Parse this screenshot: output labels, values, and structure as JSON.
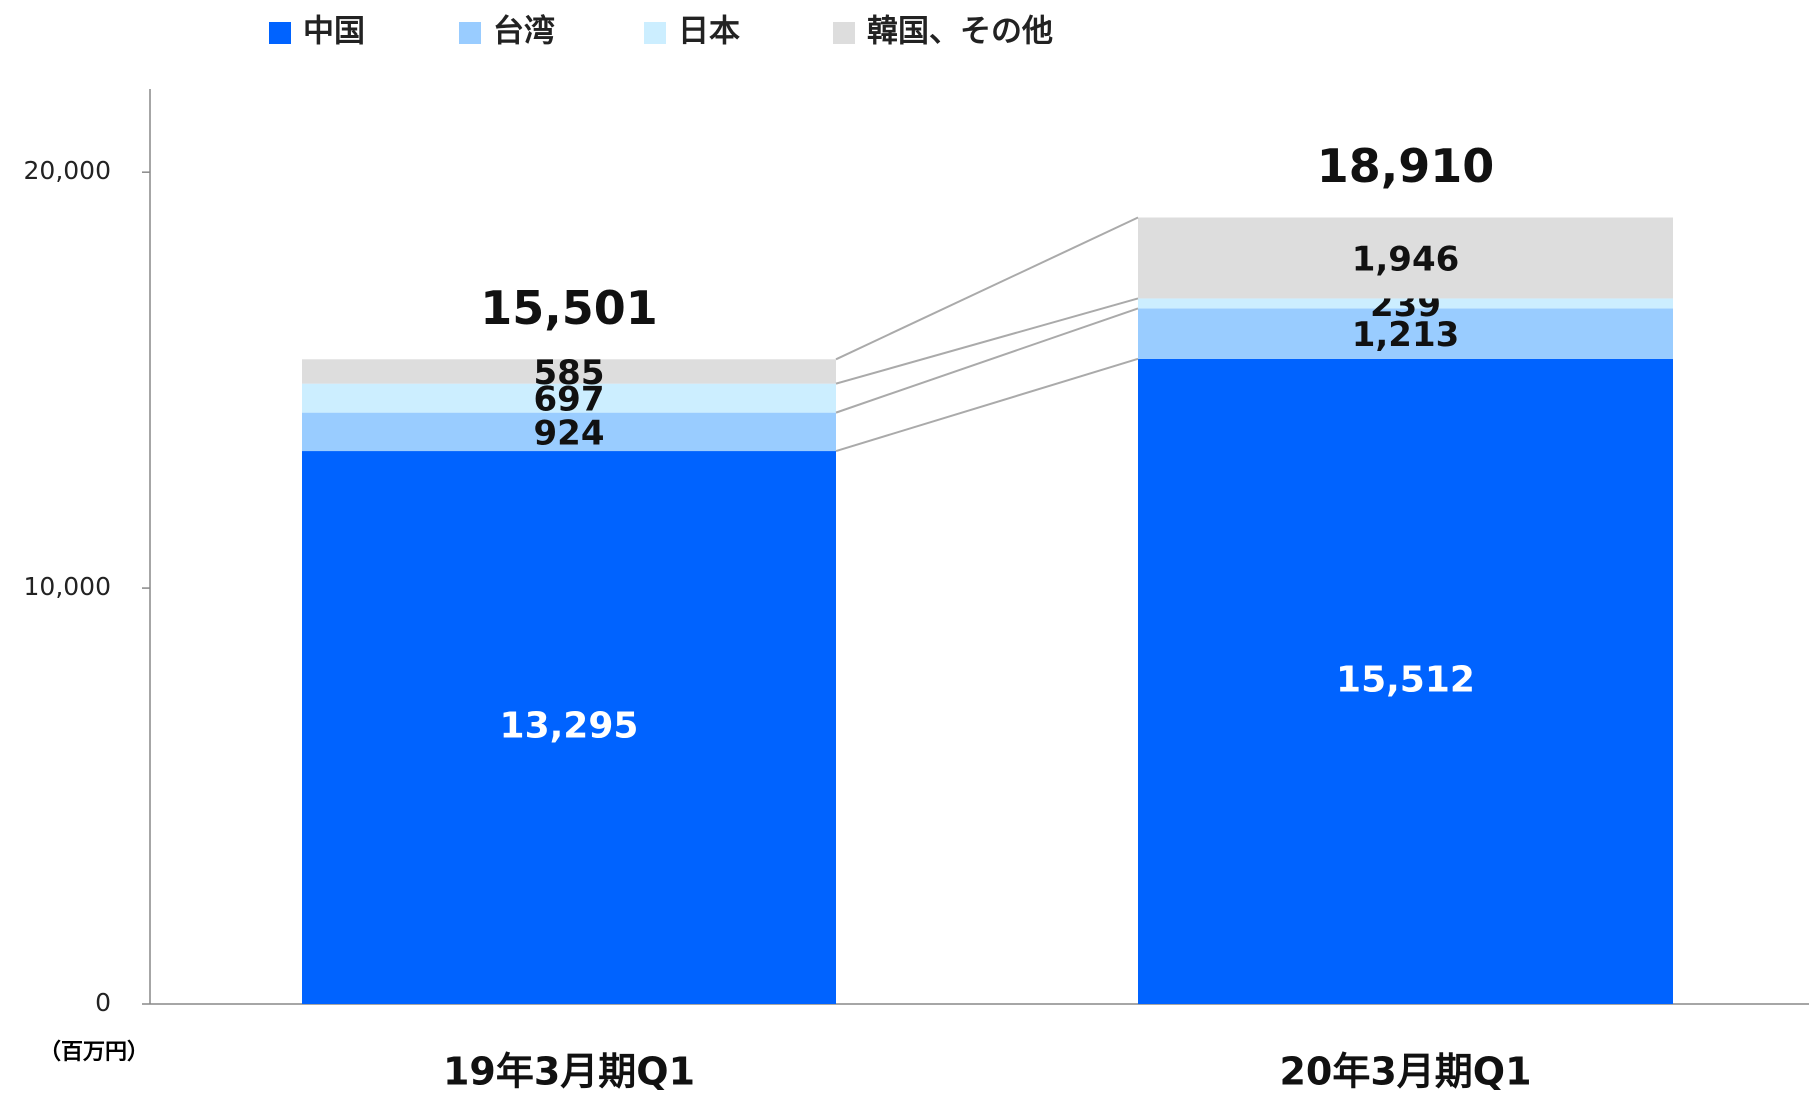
{
  "chart_data": {
    "type": "stacked-bar",
    "categories": [
      "19年3月期Q1",
      "20年3月期Q1"
    ],
    "series": [
      {
        "name": "中国",
        "color": "#0063ff",
        "values": [
          13295,
          15512
        ],
        "value_labels": [
          "13,295",
          "15,512"
        ]
      },
      {
        "name": "台湾",
        "color": "#99ccff",
        "values": [
          924,
          1213
        ],
        "value_labels": [
          "924",
          "1,213"
        ]
      },
      {
        "name": "日本",
        "color": "#cceeff",
        "values": [
          697,
          239
        ],
        "value_labels": [
          "697",
          "239"
        ]
      },
      {
        "name": "韓国、その他",
        "color": "#dddddd",
        "values": [
          585,
          1946
        ],
        "value_labels": [
          "585",
          "1,946"
        ]
      }
    ],
    "totals": {
      "values": [
        15501,
        18910
      ],
      "value_labels": [
        "15,501",
        "18,910"
      ]
    },
    "ylim": [
      0,
      22000
    ],
    "yticks": [
      0,
      {
        "value": 10000,
        "label": "10,000"
      },
      {
        "value": 20000,
        "label": "20,000"
      }
    ],
    "y_unit_label": "（百万円）"
  }
}
